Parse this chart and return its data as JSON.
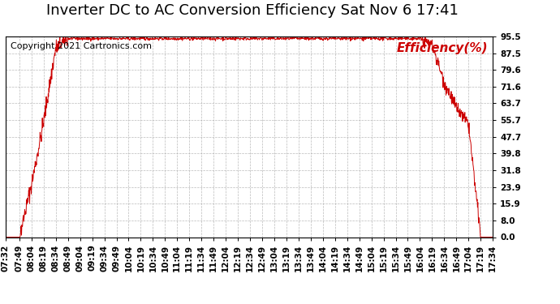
{
  "title": "Inverter DC to AC Conversion Efficiency Sat Nov 6 17:41",
  "copyright": "Copyright 2021 Cartronics.com",
  "legend_label": "Efficiency(%)",
  "line_color": "#cc0000",
  "bg_color": "#ffffff",
  "grid_color": "#aaaaaa",
  "yticks": [
    0.0,
    8.0,
    15.9,
    23.9,
    31.8,
    39.8,
    47.7,
    55.7,
    63.7,
    71.6,
    79.6,
    87.5,
    95.5
  ],
  "ymin": 0.0,
  "ymax": 95.5,
  "xtick_labels": [
    "07:32",
    "07:49",
    "08:04",
    "08:19",
    "08:34",
    "08:49",
    "09:04",
    "09:19",
    "09:34",
    "09:49",
    "10:04",
    "10:19",
    "10:34",
    "10:49",
    "11:04",
    "11:19",
    "11:34",
    "11:49",
    "12:04",
    "12:19",
    "12:34",
    "12:49",
    "13:04",
    "13:19",
    "13:34",
    "13:49",
    "14:04",
    "14:19",
    "14:34",
    "14:49",
    "15:04",
    "15:19",
    "15:34",
    "15:49",
    "16:04",
    "16:19",
    "16:34",
    "16:49",
    "17:04",
    "17:19",
    "17:34"
  ],
  "title_fontsize": 13,
  "copyright_fontsize": 8,
  "legend_fontsize": 11,
  "tick_fontsize": 7.5
}
